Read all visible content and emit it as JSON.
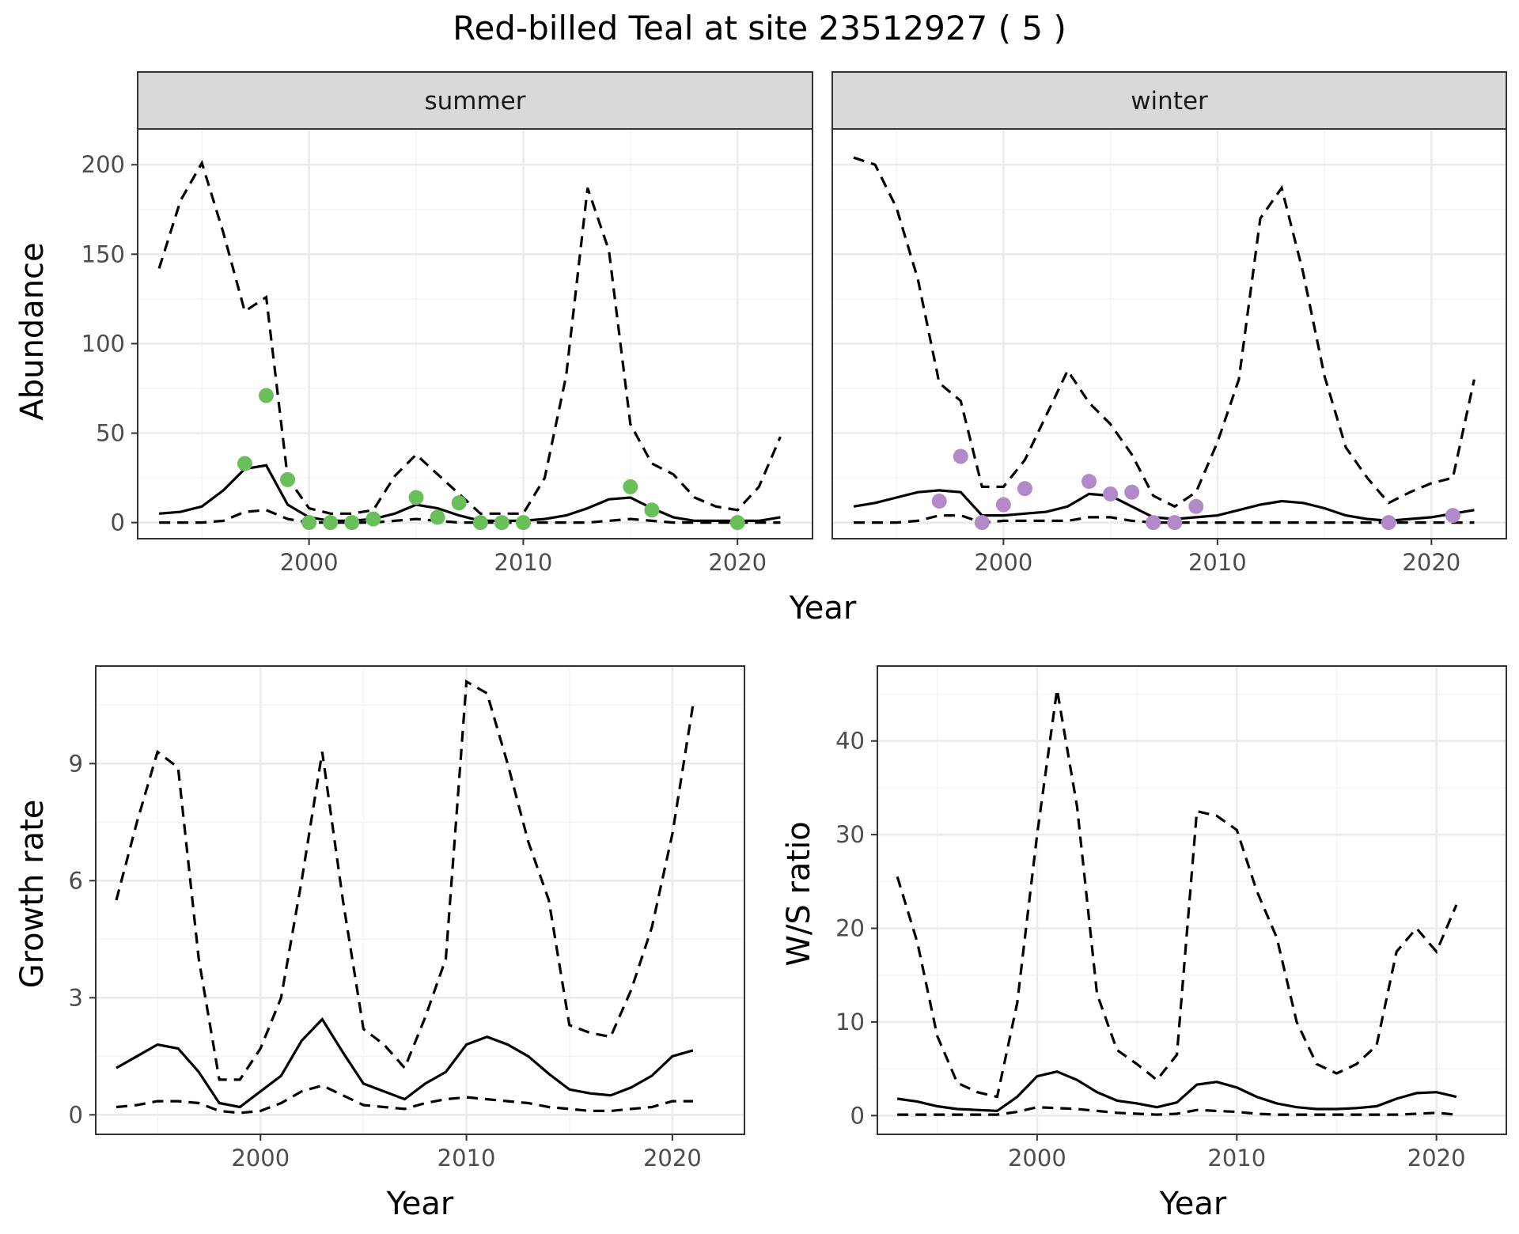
{
  "chart_data": {
    "title": "Red-billed Teal at site 23512927 ( 5 )",
    "colors": {
      "summer_points": "#6abf5a",
      "winter_points": "#b38ac9",
      "lines": "#000000"
    },
    "panels": [
      {
        "id": "abundance",
        "type": "line",
        "ylabel": "Abundance",
        "xlabel": "Year",
        "xlim": [
          1992,
          2023.5
        ],
        "ylim": [
          -9,
          220
        ],
        "xticks": [
          2000,
          2010,
          2020
        ],
        "yticks": [
          0,
          50,
          100,
          150,
          200
        ],
        "grid": true,
        "facets": [
          {
            "label": "summer",
            "x": [
              1993,
              1994,
              1995,
              1996,
              1997,
              1998,
              1999,
              2000,
              2001,
              2002,
              2003,
              2004,
              2005,
              2006,
              2007,
              2008,
              2009,
              2010,
              2011,
              2012,
              2013,
              2014,
              2015,
              2016,
              2017,
              2018,
              2019,
              2020,
              2021,
              2022
            ],
            "median": [
              5,
              6,
              9,
              18,
              30,
              32,
              10,
              3,
              1,
              1,
              2,
              5,
              10,
              8,
              4,
              1,
              1,
              1,
              2,
              4,
              8,
              13,
              14,
              8,
              3,
              1,
              1,
              1,
              1,
              3
            ],
            "upper": [
              142,
              180,
              201,
              162,
              118,
              126,
              25,
              8,
              5,
              5,
              7,
              26,
              38,
              27,
              16,
              5,
              5,
              5,
              25,
              82,
              187,
              152,
              55,
              33,
              27,
              14,
              9,
              7,
              20,
              48
            ],
            "lower": [
              0,
              0,
              0,
              1,
              6,
              7,
              2,
              0,
              0,
              0,
              0,
              1,
              2,
              1,
              0,
              0,
              0,
              0,
              0,
              0,
              0,
              1,
              2,
              1,
              0,
              0,
              0,
              0,
              0,
              0
            ],
            "points": {
              "x": [
                1997,
                1998,
                1999,
                2000,
                2001,
                2002,
                2003,
                2005,
                2006,
                2007,
                2008,
                2009,
                2010,
                2015,
                2016,
                2020
              ],
              "y": [
                33,
                71,
                24,
                0,
                0,
                0,
                2,
                14,
                3,
                11,
                0,
                0,
                0,
                20,
                7,
                0
              ]
            }
          },
          {
            "label": "winter",
            "x": [
              1993,
              1994,
              1995,
              1996,
              1997,
              1998,
              1999,
              2000,
              2001,
              2002,
              2003,
              2004,
              2005,
              2006,
              2007,
              2008,
              2009,
              2010,
              2011,
              2012,
              2013,
              2014,
              2015,
              2016,
              2017,
              2018,
              2019,
              2020,
              2021,
              2022
            ],
            "median": [
              9,
              11,
              14,
              17,
              18,
              17,
              4,
              4,
              5,
              6,
              9,
              16,
              15,
              9,
              3,
              2,
              3,
              4,
              7,
              10,
              12,
              11,
              8,
              4,
              2,
              1,
              2,
              3,
              5,
              7
            ],
            "upper": [
              204,
              200,
              176,
              136,
              78,
              68,
              20,
              20,
              35,
              60,
              85,
              67,
              55,
              38,
              15,
              9,
              17,
              45,
              80,
              170,
              187,
              140,
              82,
              42,
              25,
              11,
              17,
              22,
              25,
              80
            ],
            "lower": [
              0,
              0,
              0,
              1,
              4,
              4,
              0,
              1,
              1,
              1,
              1,
              3,
              3,
              1,
              0,
              0,
              0,
              0,
              0,
              0,
              0,
              0,
              0,
              0,
              0,
              0,
              0,
              0,
              0,
              0
            ],
            "points": {
              "x": [
                1997,
                1998,
                1999,
                2000,
                2001,
                2004,
                2005,
                2006,
                2007,
                2008,
                2009,
                2018,
                2021
              ],
              "y": [
                12,
                37,
                0,
                10,
                19,
                23,
                16,
                17,
                0,
                0,
                9,
                0,
                4
              ]
            }
          }
        ]
      },
      {
        "id": "growth",
        "type": "line",
        "ylabel": "Growth rate",
        "xlabel": "Year",
        "xlim": [
          1992,
          2023.5
        ],
        "ylim": [
          -0.5,
          11.5
        ],
        "xticks": [
          2000,
          2010,
          2020
        ],
        "yticks": [
          0,
          3,
          6,
          9
        ],
        "grid": true,
        "x": [
          1993,
          1994,
          1995,
          1996,
          1997,
          1998,
          1999,
          2000,
          2001,
          2002,
          2003,
          2004,
          2005,
          2006,
          2007,
          2008,
          2009,
          2010,
          2011,
          2012,
          2013,
          2014,
          2015,
          2016,
          2017,
          2018,
          2019,
          2020,
          2021
        ],
        "median": [
          1.2,
          1.5,
          1.8,
          1.7,
          1.1,
          0.3,
          0.2,
          0.6,
          1.0,
          1.9,
          2.45,
          1.6,
          0.8,
          0.6,
          0.4,
          0.8,
          1.1,
          1.8,
          2.0,
          1.8,
          1.5,
          1.05,
          0.65,
          0.55,
          0.5,
          0.7,
          1.0,
          1.5,
          1.65
        ],
        "upper": [
          5.5,
          7.5,
          9.3,
          8.9,
          4.0,
          0.9,
          0.9,
          1.7,
          3.0,
          6.0,
          9.3,
          5.5,
          2.2,
          1.8,
          1.2,
          2.5,
          4.0,
          11.1,
          10.8,
          9.0,
          7.0,
          5.5,
          2.3,
          2.1,
          2.0,
          3.2,
          4.8,
          7.2,
          10.5
        ],
        "lower": [
          0.2,
          0.25,
          0.35,
          0.35,
          0.3,
          0.1,
          0.05,
          0.1,
          0.3,
          0.6,
          0.75,
          0.5,
          0.25,
          0.2,
          0.15,
          0.3,
          0.4,
          0.45,
          0.4,
          0.35,
          0.3,
          0.2,
          0.15,
          0.1,
          0.1,
          0.15,
          0.2,
          0.35,
          0.35
        ]
      },
      {
        "id": "ratio",
        "type": "line",
        "ylabel": "W/S ratio",
        "xlabel": "Year",
        "xlim": [
          1992,
          2023.5
        ],
        "ylim": [
          -2,
          48
        ],
        "xticks": [
          2000,
          2010,
          2020
        ],
        "yticks": [
          0,
          10,
          20,
          30,
          40
        ],
        "grid": true,
        "x": [
          1993,
          1994,
          1995,
          1996,
          1997,
          1998,
          1999,
          2000,
          2001,
          2002,
          2003,
          2004,
          2005,
          2006,
          2007,
          2008,
          2009,
          2010,
          2011,
          2012,
          2013,
          2014,
          2015,
          2016,
          2017,
          2018,
          2019,
          2020,
          2021
        ],
        "median": [
          1.8,
          1.5,
          1.0,
          0.7,
          0.6,
          0.5,
          2.0,
          4.2,
          4.7,
          3.8,
          2.5,
          1.6,
          1.3,
          0.9,
          1.4,
          3.3,
          3.6,
          3.0,
          2.0,
          1.3,
          0.9,
          0.7,
          0.7,
          0.8,
          1.0,
          1.8,
          2.4,
          2.5,
          2.0
        ],
        "upper": [
          25.5,
          18.5,
          8.5,
          3.5,
          2.5,
          2.0,
          12.0,
          30.0,
          45.5,
          33.0,
          13.0,
          7.0,
          5.5,
          3.8,
          6.5,
          32.5,
          32.0,
          30.5,
          24.0,
          19.0,
          10.0,
          5.5,
          4.5,
          5.5,
          7.5,
          17.5,
          20.0,
          17.5,
          22.5
        ],
        "lower": [
          0.1,
          0.1,
          0.1,
          0.1,
          0.1,
          0.1,
          0.4,
          0.9,
          0.8,
          0.7,
          0.5,
          0.3,
          0.2,
          0.1,
          0.2,
          0.6,
          0.5,
          0.4,
          0.2,
          0.1,
          0.1,
          0.1,
          0.1,
          0.1,
          0.1,
          0.1,
          0.2,
          0.3,
          0.1
        ]
      }
    ]
  }
}
